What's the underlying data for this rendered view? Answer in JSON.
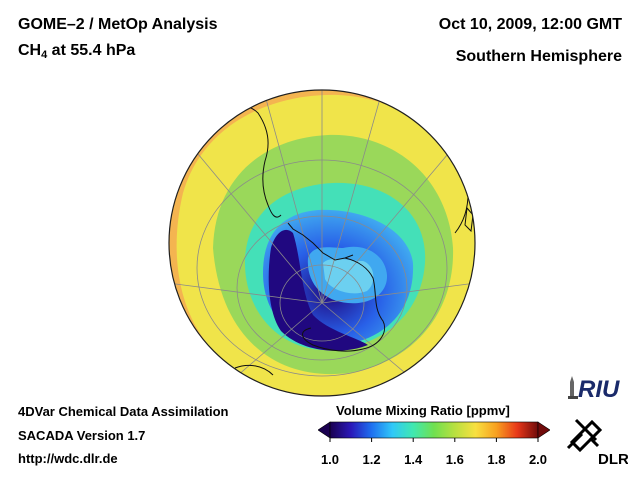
{
  "header": {
    "title_line1": "GOME–2 / MetOp Analysis",
    "species": "CH",
    "species_sub": "4",
    "level": " at 55.4 hPa",
    "datetime": "Oct 10, 2009, 12:00 GMT",
    "region": "Southern Hemisphere"
  },
  "footer": {
    "line1": "4DVar Chemical Data Assimilation",
    "line2": "SACADA Version 1.7",
    "url": "http://wdc.dlr.de"
  },
  "colorbar": {
    "title": "Volume Mixing Ratio [ppmv]",
    "ticks": [
      "1.0",
      "1.2",
      "1.4",
      "1.6",
      "1.8",
      "2.0"
    ],
    "min": 1.0,
    "max": 2.0,
    "colors": [
      "#1a0050",
      "#2a18b8",
      "#1e70f0",
      "#30c8f8",
      "#40e8b0",
      "#70e050",
      "#b8e040",
      "#f8e040",
      "#f8a020",
      "#e83818",
      "#700a0a"
    ]
  },
  "logos": {
    "riu": "RIU",
    "dlr": "DLR"
  },
  "map": {
    "projection": "orthographic",
    "center": "South Pole",
    "colors": {
      "outer": "#f4b450",
      "midlat": "#f0e44a",
      "collar": "#9ad85a",
      "ring": "#44e0b8",
      "vortex_edge": "#40a8f0",
      "vortex_mid": "#2860e8",
      "vortex_core": "#200880",
      "coast": "#101010",
      "graticule": "#8a8a8a"
    }
  }
}
